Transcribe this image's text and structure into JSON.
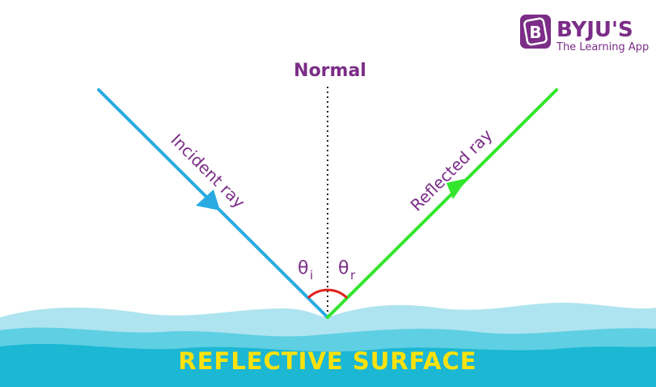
{
  "brand": {
    "name": "BYJU'S",
    "tagline": "The Learning App",
    "logo_letter": "B",
    "color": "#7b2d87"
  },
  "labels": {
    "normal": "Normal",
    "incident_ray": "Incident ray",
    "reflected_ray": "Reflected ray",
    "theta_symbol": "θ",
    "theta_incident_sub": "i",
    "theta_reflected_sub": "r",
    "surface": "REFLECTIVE SURFACE"
  },
  "colors": {
    "incident_ray": "#29abe2",
    "reflected_ray": "#33e62c",
    "angle_arc": "#e0201c",
    "normal_line": "#222222",
    "text": "#7b2d87",
    "surface_text": "#fbe20c",
    "water_light": "#aee4ef",
    "water_mid": "#5fcfe3",
    "water_dark": "#1bb7d3"
  }
}
